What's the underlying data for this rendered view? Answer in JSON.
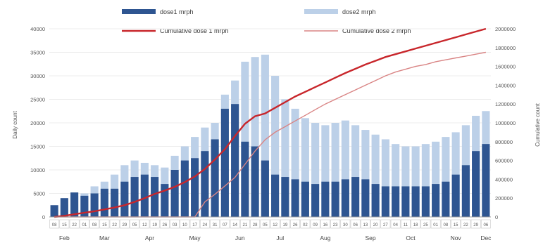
{
  "chart_data": {
    "type": "bar",
    "title": "",
    "ylabel": "Daily count",
    "y2label": "Cumulative count",
    "ylim": [
      0,
      40000
    ],
    "y2lim": [
      0,
      2000000
    ],
    "yticks": [
      "0",
      "5000",
      "10000",
      "15000",
      "20000",
      "25000",
      "30000",
      "35000",
      "40000"
    ],
    "y2ticks": [
      "0",
      "200000",
      "400000",
      "600000",
      "800000",
      "1000000",
      "1200000",
      "1400000",
      "1600000",
      "1800000",
      "2000000"
    ],
    "months": [
      "Feb",
      "Mar",
      "Apr",
      "May",
      "Jun",
      "Jul",
      "Aug",
      "Sep",
      "Oct",
      "Nov",
      "Dec"
    ],
    "legend": {
      "dose1": "dose1 mrph",
      "dose2": "dose2 mrph",
      "cum1": "Cumulative dose 1 mrph",
      "cum2": "Cumulative dose 2 mrph"
    },
    "colors": {
      "dose1": "#2e5591",
      "dose2": "#bcd0e8",
      "cum1": "#c8262b",
      "cum2": "#d98484"
    },
    "date_labels": [
      "08",
      "15",
      "22",
      "01",
      "08",
      "15",
      "22",
      "29",
      "05",
      "12",
      "19",
      "26",
      "03",
      "10",
      "17",
      "24",
      "31",
      "07",
      "14",
      "21",
      "28",
      "05",
      "12",
      "19",
      "26",
      "02",
      "09",
      "16",
      "23",
      "30",
      "06",
      "13",
      "20",
      "27",
      "04",
      "11",
      "18",
      "25",
      "01",
      "08",
      "15",
      "22",
      "29",
      "06"
    ],
    "series": [
      {
        "name": "dose1 mrph",
        "type": "bar",
        "weekly_values": [
          2500,
          4000,
          5200,
          4500,
          5000,
          6000,
          6000,
          7500,
          8500,
          9000,
          8500,
          7000,
          10000,
          12000,
          12500,
          14000,
          16500,
          23000,
          24000,
          16000,
          15000,
          12000,
          9000,
          8500,
          8000,
          7500,
          7000,
          7500,
          7500,
          8000,
          8500,
          8000,
          7000,
          6500,
          6500,
          6500,
          6500,
          6500,
          7000,
          7500,
          9000,
          11000,
          14000,
          15500
        ]
      },
      {
        "name": "dose2 mrph",
        "type": "bar",
        "weekly_values": [
          1500,
          2500,
          4500,
          5000,
          6500,
          7500,
          9000,
          11000,
          12000,
          11500,
          11000,
          10500,
          13000,
          15000,
          17000,
          19000,
          20000,
          26000,
          29000,
          33000,
          34000,
          34500,
          30000,
          25000,
          23000,
          21000,
          20000,
          19500,
          20000,
          20500,
          19500,
          18500,
          17500,
          16500,
          15500,
          15000,
          15000,
          15500,
          16000,
          17000,
          18000,
          19500,
          21500,
          22500
        ]
      },
      {
        "name": "Cumulative dose 1 mrph",
        "type": "line",
        "weekly_values": [
          0,
          12000,
          28000,
          45000,
          60000,
          80000,
          100000,
          125000,
          160000,
          200000,
          245000,
          280000,
          320000,
          370000,
          430000,
          510000,
          610000,
          720000,
          860000,
          990000,
          1070000,
          1100000,
          1160000,
          1220000,
          1280000,
          1330000,
          1380000,
          1430000,
          1480000,
          1530000,
          1575000,
          1620000,
          1660000,
          1700000,
          1730000,
          1760000,
          1790000,
          1820000,
          1850000,
          1880000,
          1910000,
          1940000,
          1970000,
          2000000
        ]
      },
      {
        "name": "Cumulative dose 2 mrph",
        "type": "line",
        "weekly_values": [
          0,
          0,
          0,
          0,
          0,
          0,
          0,
          0,
          0,
          0,
          0,
          0,
          0,
          0,
          0,
          160000,
          240000,
          330000,
          420000,
          560000,
          700000,
          820000,
          900000,
          960000,
          1020000,
          1080000,
          1140000,
          1200000,
          1250000,
          1300000,
          1350000,
          1400000,
          1450000,
          1500000,
          1540000,
          1570000,
          1600000,
          1620000,
          1650000,
          1670000,
          1690000,
          1710000,
          1730000,
          1750000
        ]
      }
    ]
  }
}
